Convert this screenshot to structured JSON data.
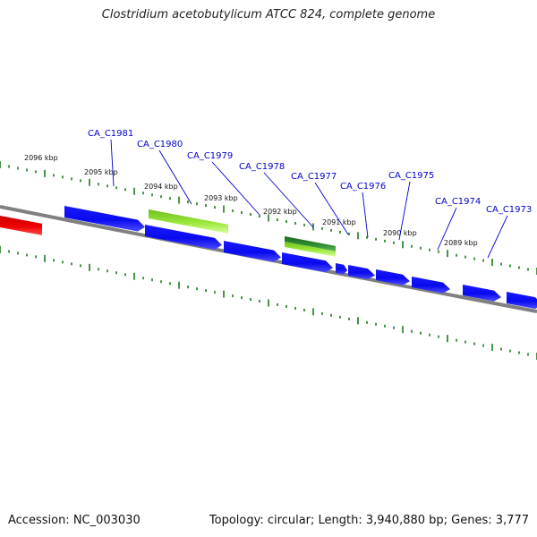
{
  "title": "Clostridium acetobutylicum ATCC 824, complete genome",
  "footer": {
    "accession": "Accession: NC_003030",
    "summary": "Topology: circular; Length: 3,940,880 bp; Genes: 3,777"
  },
  "colors": {
    "backbone": "#808080",
    "ticks": "#1a7a1a",
    "gene_forward": "#0a0aee",
    "gene_highlight": "#9be83a",
    "gene_dark": "#2e8b2e",
    "other_feature": "#ee0000",
    "label": "#0000cc"
  },
  "kbp_labels": [
    "2096 kbp",
    "2095 kbp",
    "2094 kbp",
    "2093 kbp",
    "2092 kbp",
    "2091 kbp",
    "2090 kbp",
    "2089 kbp"
  ],
  "gene_labels": [
    "CA_C1981",
    "CA_C1980",
    "CA_C1979",
    "CA_C1978",
    "CA_C1977",
    "CA_C1976",
    "CA_C1975",
    "CA_C1974",
    "CA_C1973"
  ]
}
